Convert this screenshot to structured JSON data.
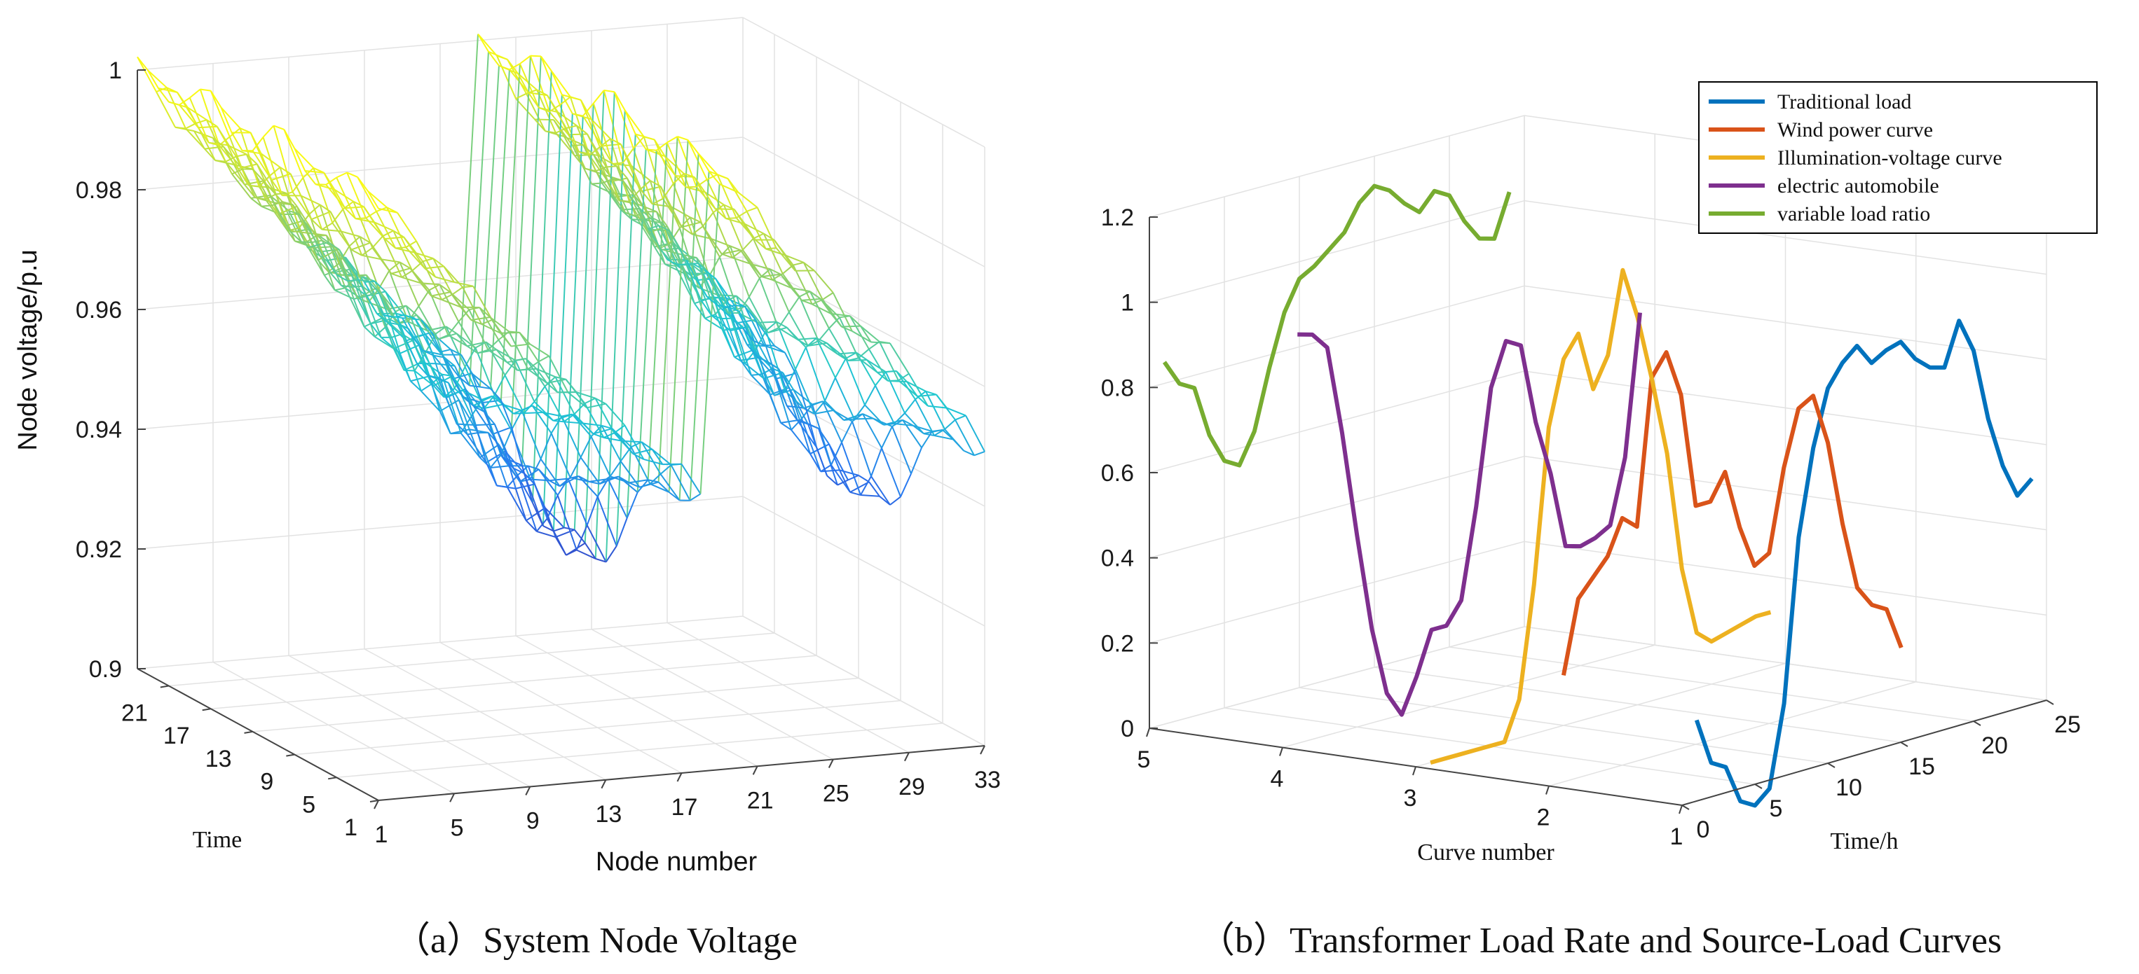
{
  "chart_data": [
    {
      "id": "a",
      "type": "surface3d",
      "caption_mark": "（a）",
      "caption": "System Node Voltage",
      "zlabel": "Node voltage/p.u",
      "xlabel": "Node number",
      "ylabel": "Time",
      "zlim": [
        0.9,
        1.0
      ],
      "z_ticks": [
        "1",
        "0.98",
        "0.96",
        "0.94",
        "0.92",
        "0.9"
      ],
      "x_ticks": [
        "1",
        "5",
        "9",
        "13",
        "17",
        "21",
        "25",
        "29",
        "33"
      ],
      "y_ticks": [
        "21",
        "17",
        "13",
        "9",
        "5",
        "1"
      ],
      "x_range": [
        1,
        33
      ],
      "y_range": [
        1,
        24
      ],
      "series_description": "Mesh surface of node voltage over 33 nodes and 24 hours; voltage starts at 1.0 p.u. at node 1 / node 19 (feeder heads) and drops toward ~0.915 p.u. at the ends of each lateral, with deeper drops during peak hours."
    },
    {
      "id": "b",
      "type": "line3d",
      "caption_mark": "（b）",
      "caption": "Transformer Load Rate and Source-Load Curves",
      "zlim": [
        0,
        1.2
      ],
      "z_ticks": [
        "1.2",
        "1",
        "0.8",
        "0.6",
        "0.4",
        "0.2",
        "0"
      ],
      "xlabel": "Curve number",
      "x_ticks": [
        "5",
        "4",
        "3",
        "2",
        "1"
      ],
      "ylabel": "Time/h",
      "y_ticks": [
        "0",
        "5",
        "10",
        "15",
        "20",
        "25"
      ],
      "series": [
        {
          "name": "Traditional load",
          "curve": 1,
          "color": "#0072BD",
          "values": [
            0.19,
            0.08,
            0.06,
            -0.03,
            -0.05,
            -0.02,
            0.17,
            0.55,
            0.75,
            0.88,
            0.93,
            0.96,
            0.91,
            0.93,
            0.94,
            0.89,
            0.86,
            0.85,
            0.95,
            0.87,
            0.7,
            0.58,
            0.5,
            0.53
          ]
        },
        {
          "name": "Wind power curve",
          "curve": 2,
          "color": "#D95319",
          "values": [
            0.25,
            0.42,
            0.46,
            0.5,
            0.58,
            0.55,
            0.89,
            0.94,
            0.83,
            0.56,
            0.56,
            0.62,
            0.48,
            0.38,
            0.4,
            0.59,
            0.72,
            0.74,
            0.62,
            0.42,
            0.26,
            0.21,
            0.19,
            0.09
          ]
        },
        {
          "name": "Illumination-voltage curve",
          "curve": 3,
          "color": "#EDB120",
          "values": [
            0.0,
            0.0,
            0.0,
            0.0,
            0.0,
            0.0,
            0.09,
            0.35,
            0.71,
            0.86,
            0.91,
            0.77,
            0.84,
            1.03,
            0.91,
            0.75,
            0.57,
            0.29,
            0.13,
            0.1,
            0.11,
            0.12,
            0.13,
            0.13
          ]
        },
        {
          "name": "electric automobile",
          "curve": 4,
          "color": "#7E2F8E",
          "values": [
            0.96,
            0.95,
            0.91,
            0.7,
            0.45,
            0.22,
            0.06,
            0.0,
            0.08,
            0.18,
            0.18,
            0.23,
            0.44,
            0.71,
            0.81,
            0.79,
            0.6,
            0.47,
            0.29,
            0.28,
            0.29,
            0.31,
            0.46,
            0.79
          ]
        },
        {
          "name": "variable load ratio",
          "curve": 5,
          "color": "#77AC30",
          "values": [
            0.85,
            0.79,
            0.77,
            0.65,
            0.58,
            0.56,
            0.63,
            0.77,
            0.89,
            0.96,
            0.98,
            1.01,
            1.04,
            1.1,
            1.13,
            1.11,
            1.07,
            1.04,
            1.08,
            1.06,
            0.99,
            0.94,
            0.93,
            1.03
          ]
        }
      ],
      "legend_position": "top-right"
    }
  ]
}
